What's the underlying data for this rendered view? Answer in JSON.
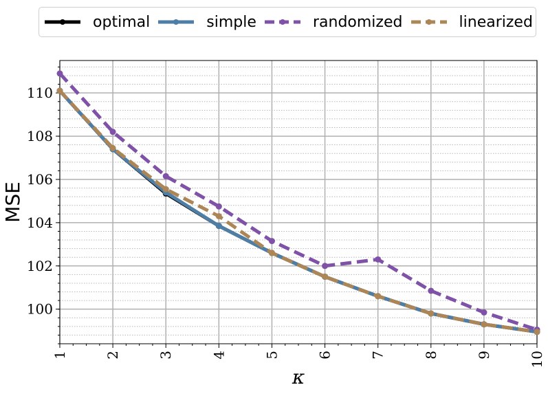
{
  "chart_data": {
    "type": "line",
    "xlabel": "κ",
    "ylabel": "MSE",
    "x": [
      1,
      2,
      3,
      4,
      5,
      6,
      7,
      8,
      9,
      10
    ],
    "xlim": [
      1,
      10
    ],
    "ylim": [
      98.4,
      111.5
    ],
    "x_ticks": [
      "1",
      "2",
      "3",
      "4",
      "5",
      "6",
      "7",
      "8",
      "9",
      "10"
    ],
    "y_ticks": [
      100,
      102,
      104,
      106,
      108,
      110
    ],
    "y_tick_labels": [
      "100",
      "102",
      "104",
      "106",
      "108",
      "110"
    ],
    "grid": true,
    "legend_position": "top",
    "series": [
      {
        "name": "optimal",
        "color": "#000000",
        "dashed": false,
        "values": [
          110.1,
          107.4,
          105.35,
          103.85,
          102.6,
          101.5,
          100.6,
          99.8,
          99.3,
          98.95
        ]
      },
      {
        "name": "simple",
        "color": "#4e7ea6",
        "dashed": false,
        "values": [
          110.1,
          107.4,
          105.4,
          103.85,
          102.6,
          101.5,
          100.6,
          99.8,
          99.3,
          98.95
        ]
      },
      {
        "name": "randomized",
        "color": "#7f52a8",
        "dashed": true,
        "values": [
          110.9,
          108.2,
          106.15,
          104.75,
          103.15,
          102.0,
          102.3,
          100.85,
          99.85,
          99.05
        ]
      },
      {
        "name": "linearized",
        "color": "#ad8657",
        "dashed": true,
        "values": [
          110.1,
          107.45,
          105.55,
          104.3,
          102.6,
          101.5,
          100.6,
          99.8,
          99.3,
          98.95
        ]
      }
    ]
  }
}
